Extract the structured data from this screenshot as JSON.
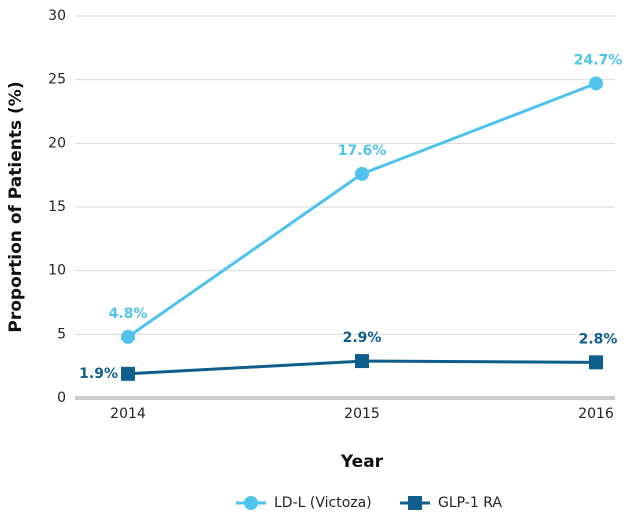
{
  "chart_data": {
    "type": "line",
    "x_label": "Year",
    "y_label": "Proportion of Patients (%)",
    "categories": [
      "2014",
      "2015",
      "2016"
    ],
    "series": [
      {
        "name": "LD-L (Victoza)",
        "color": "#4fc3ec",
        "marker": "circle",
        "values": [
          4.8,
          17.6,
          24.7
        ],
        "value_labels": [
          "4.8%",
          "17.6%",
          "24.7%"
        ]
      },
      {
        "name": "GLP-1 RA",
        "color": "#0f5e8c",
        "marker": "square",
        "values": [
          1.9,
          2.9,
          2.8
        ],
        "value_labels": [
          "1.9%",
          "2.9%",
          "2.8%"
        ]
      }
    ],
    "ylim": [
      0,
      30
    ],
    "yticks": [
      0,
      5,
      10,
      15,
      20,
      25,
      30
    ],
    "grid": true,
    "legend": "bottom"
  }
}
